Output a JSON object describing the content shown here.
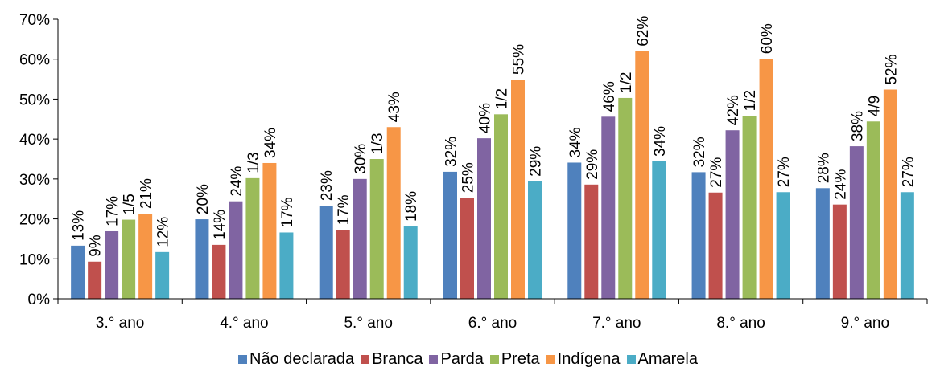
{
  "chart_data": {
    "type": "bar",
    "categories": [
      "3.° ano",
      "4.° ano",
      "5.° ano",
      "6.° ano",
      "7.° ano",
      "8.° ano",
      "9.° ano"
    ],
    "ylim": [
      0,
      70
    ],
    "yticks": [
      "0%",
      "10%",
      "20%",
      "30%",
      "40%",
      "50%",
      "60%",
      "70%"
    ],
    "grid": false,
    "legend_position": "bottom",
    "series": [
      {
        "name": "Não declarada",
        "color": "#4F81BD",
        "values": [
          13.3,
          19.9,
          23.3,
          31.8,
          34.1,
          31.7,
          27.7
        ],
        "labels": [
          "13%",
          "20%",
          "23%",
          "32%",
          "34%",
          "32%",
          "28%"
        ]
      },
      {
        "name": "Branca",
        "color": "#C0504D",
        "values": [
          9.3,
          13.5,
          17.2,
          25.3,
          28.6,
          26.6,
          23.6
        ],
        "labels": [
          "9%",
          "14%",
          "17%",
          "25%",
          "29%",
          "27%",
          "24%"
        ]
      },
      {
        "name": "Parda",
        "color": "#8064A2",
        "values": [
          16.9,
          24.4,
          30.0,
          40.2,
          45.6,
          42.2,
          38.2
        ],
        "labels": [
          "17%",
          "24%",
          "30%",
          "40%",
          "46%",
          "42%",
          "38%"
        ]
      },
      {
        "name": "Preta",
        "color": "#9BBB59",
        "values": [
          19.8,
          30.2,
          35.0,
          46.2,
          50.3,
          45.8,
          44.4
        ],
        "labels": [
          "1/5",
          "1/3",
          "1/3",
          "1/2",
          "1/2",
          "1/2",
          "4/9"
        ]
      },
      {
        "name": "Indígena",
        "color": "#F79646",
        "values": [
          21.3,
          34.0,
          43.0,
          54.9,
          62.0,
          60.1,
          52.4
        ],
        "labels": [
          "21%",
          "34%",
          "43%",
          "55%",
          "62%",
          "60%",
          "52%"
        ]
      },
      {
        "name": "Amarela",
        "color": "#4BACC6",
        "values": [
          11.7,
          16.6,
          18.1,
          29.4,
          34.4,
          26.7,
          26.7
        ],
        "labels": [
          "12%",
          "17%",
          "18%",
          "29%",
          "34%",
          "27%",
          "27%"
        ]
      }
    ]
  }
}
